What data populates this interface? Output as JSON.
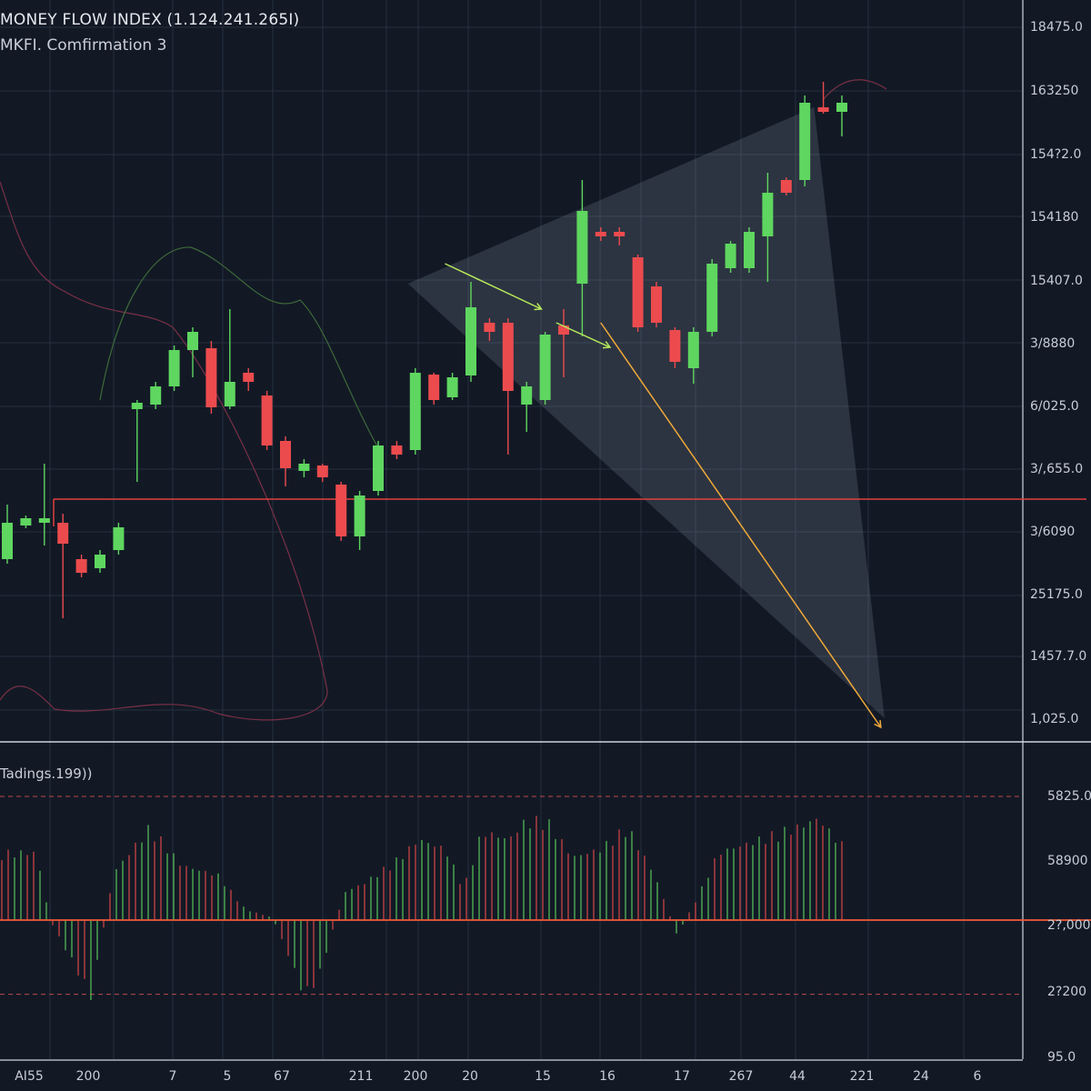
{
  "header": {
    "title": "MONEY FLOW INDEX (1.124.241.265I)",
    "subtitle": "MKFI. Comfirmation 3"
  },
  "lower_panel": {
    "label": "Tadings.199))"
  },
  "colors": {
    "background": "#121925",
    "grid": "#26303e",
    "up": "#5fd660",
    "down": "#ec4b4e",
    "level_line": "#e0403f",
    "arrow_green": "#b6e85a",
    "arrow_orange": "#f0a93a",
    "shade": "#8a96a8"
  },
  "chart_data": [
    {
      "type": "candlestick",
      "title": "MONEY FLOW INDEX (1.124.241.265I)",
      "subtitle": "MKFI. Comfirmation 3",
      "ylim": [
        10000,
        18150
      ],
      "y_tick_labels": [
        "18475.0",
        "163250",
        "154?2.0",
        "154180",
        "15407.0",
        "3/8880",
        "6/025.0",
        "3/,655.0",
        "3/6090",
        "25175.0",
        "1457.7.0",
        "1,025.0"
      ],
      "x_tick_labels": [
        "AI55",
        "200",
        "7",
        "5",
        "67",
        "211",
        "200",
        "20",
        "15",
        "16",
        "17",
        "267",
        "44",
        "221",
        "24",
        "6"
      ],
      "candles_ohlc": [
        [
          12000,
          12600,
          11950,
          12400
        ],
        [
          12370,
          12480,
          12340,
          12450
        ],
        [
          12400,
          13050,
          12150,
          12450
        ],
        [
          12400,
          12500,
          11350,
          12170
        ],
        [
          12000,
          12050,
          11800,
          11850
        ],
        [
          11900,
          12100,
          11850,
          12050
        ],
        [
          12100,
          12400,
          12050,
          12350
        ],
        [
          13650,
          13750,
          12850,
          13720
        ],
        [
          13700,
          13950,
          13650,
          13900
        ],
        [
          13900,
          14350,
          13850,
          14300
        ],
        [
          14300,
          14550,
          14000,
          14500
        ],
        [
          14320,
          14400,
          13600,
          13670
        ],
        [
          13680,
          14750,
          13650,
          13950
        ],
        [
          14050,
          14100,
          13850,
          13950
        ],
        [
          13800,
          13850,
          13200,
          13250
        ],
        [
          13300,
          13350,
          12800,
          13000
        ],
        [
          12970,
          13100,
          12900,
          13050
        ],
        [
          13030,
          13050,
          12850,
          12900
        ],
        [
          12820,
          12850,
          12200,
          12250
        ],
        [
          12250,
          12750,
          12100,
          12700
        ],
        [
          12750,
          13300,
          12700,
          13250
        ],
        [
          13250,
          13300,
          13100,
          13150
        ],
        [
          13200,
          14100,
          13150,
          14050
        ],
        [
          14030,
          14050,
          13700,
          13750
        ],
        [
          13780,
          14050,
          13750,
          14000
        ],
        [
          14020,
          15050,
          13950,
          14770
        ],
        [
          14600,
          14650,
          14400,
          14500
        ],
        [
          14600,
          14650,
          13150,
          13850
        ],
        [
          13700,
          13950,
          13400,
          13900
        ],
        [
          13750,
          14500,
          13700,
          14470
        ],
        [
          14570,
          14750,
          14000,
          14470
        ],
        [
          15030,
          16170,
          14450,
          15830
        ],
        [
          15600,
          15650,
          15500,
          15550
        ],
        [
          15600,
          15650,
          15450,
          15550
        ],
        [
          15320,
          15350,
          14500,
          14550
        ],
        [
          15000,
          15050,
          14550,
          14600
        ],
        [
          14520,
          14550,
          14100,
          14170
        ],
        [
          14100,
          14550,
          13930,
          14500
        ],
        [
          14500,
          15300,
          14450,
          15250
        ],
        [
          15200,
          15500,
          15150,
          15470
        ],
        [
          15200,
          15650,
          15150,
          15600
        ],
        [
          15550,
          16250,
          15050,
          16030
        ],
        [
          16170,
          16200,
          16000,
          16030
        ],
        [
          16170,
          17100,
          16100,
          17020
        ],
        [
          16970,
          17250,
          16900,
          16920
        ],
        [
          16920,
          17100,
          16650,
          17020
        ]
      ],
      "level_line": {
        "price": 12660,
        "from_index": 2.5
      },
      "shaded_triangle": [
        [
          21.6,
          15030
        ],
        [
          43.5,
          16970
        ],
        [
          47.3,
          10250
        ]
      ],
      "arrows": [
        {
          "color": "arrow_green",
          "from": [
            23.6,
            15250
          ],
          "to": [
            28.8,
            14750
          ]
        },
        {
          "color": "arrow_green",
          "from": [
            29.6,
            14600
          ],
          "to": [
            32.5,
            14330
          ]
        },
        {
          "color": "arrow_orange",
          "from": [
            32,
            14600
          ],
          "to": [
            47.1,
            10150
          ]
        }
      ]
    },
    {
      "type": "bar",
      "title": "Tadings.199))",
      "y_tick_labels": [
        "5825.0",
        "58900",
        "2?,000",
        "2?200",
        "95.0"
      ],
      "upper_band": 100,
      "lower_band": -60,
      "ylim": [
        -112,
        112
      ],
      "envelope": [
        [
          0,
          57
        ],
        [
          40,
          57
        ],
        [
          55,
          0
        ],
        [
          100,
          -65
        ],
        [
          125,
          40
        ],
        [
          165,
          79
        ],
        [
          200,
          46
        ],
        [
          240,
          38
        ],
        [
          270,
          9
        ],
        [
          300,
          2
        ],
        [
          320,
          -35
        ],
        [
          335,
          -65
        ],
        [
          350,
          -50
        ],
        [
          370,
          2
        ],
        [
          380,
          24
        ],
        [
          400,
          31
        ],
        [
          440,
          53
        ],
        [
          460,
          68
        ],
        [
          490,
          60
        ],
        [
          510,
          27
        ],
        [
          530,
          75
        ],
        [
          560,
          68
        ],
        [
          575,
          82
        ],
        [
          600,
          86
        ],
        [
          630,
          53
        ],
        [
          660,
          60
        ],
        [
          690,
          79
        ],
        [
          720,
          38
        ],
        [
          745,
          -13
        ],
        [
          770,
          24
        ],
        [
          790,
          57
        ],
        [
          820,
          64
        ],
        [
          860,
          75
        ],
        [
          880,
          79
        ],
        [
          900,
          86
        ],
        [
          925,
          64
        ]
      ]
    }
  ]
}
